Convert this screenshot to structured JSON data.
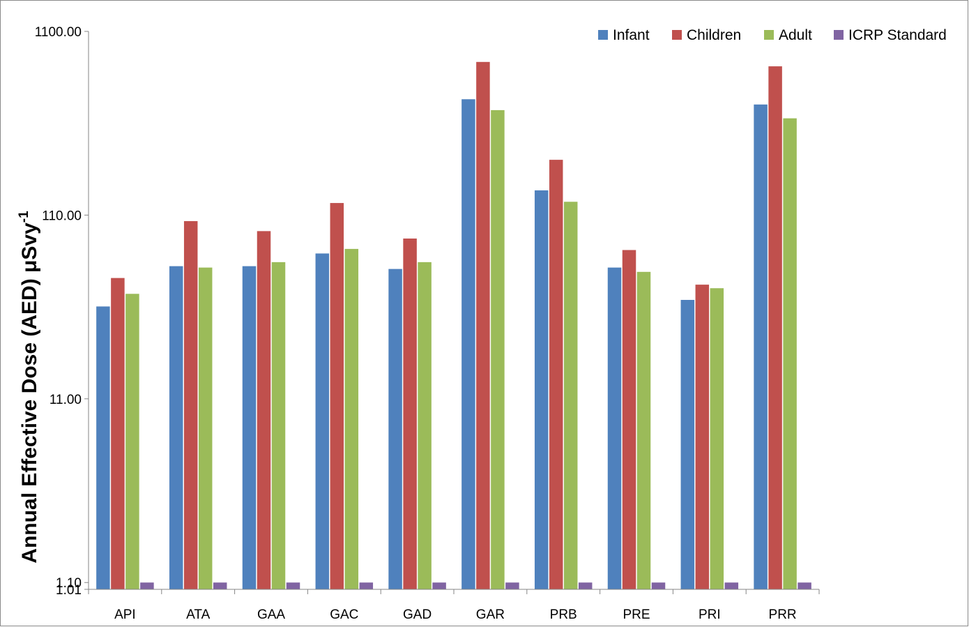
{
  "chart_data": {
    "type": "bar",
    "title": "",
    "xlabel": "",
    "ylabel": "Annual Effective Dose (AED) μSvy",
    "ylabel_superscript": "-1",
    "yscale": "log10",
    "ylim": [
      1.01,
      1100
    ],
    "yticks": [
      1.01,
      1.1,
      11,
      110,
      1100
    ],
    "ytick_labels": [
      "1.01",
      "1.10",
      "11.00",
      "110.00",
      "1100.00"
    ],
    "grid": false,
    "legend_position": "top-right",
    "categories": [
      "API",
      "ATA",
      "GAA",
      "GAC",
      "GAD",
      "GAR",
      "PRB",
      "PRE",
      "PRI",
      "PRR"
    ],
    "series": [
      {
        "name": "Infant",
        "color": "#4F81BD",
        "values": [
          35.0,
          58.0,
          58.0,
          68.0,
          56.0,
          470.0,
          150.0,
          57.0,
          38.0,
          440.0
        ]
      },
      {
        "name": "Children",
        "color": "#C0504D",
        "values": [
          50.0,
          102.0,
          90.0,
          128.0,
          82.0,
          750.0,
          220.0,
          71.0,
          46.0,
          710.0
        ]
      },
      {
        "name": "Adult",
        "color": "#9BBB59",
        "values": [
          41.0,
          57.0,
          61.0,
          72.0,
          61.0,
          410.0,
          130.0,
          54.0,
          44.0,
          370.0
        ]
      },
      {
        "name": "ICRP Standard",
        "color": "#8064A2",
        "values": [
          1.1,
          1.1,
          1.1,
          1.1,
          1.1,
          1.1,
          1.1,
          1.1,
          1.1,
          1.1
        ]
      }
    ]
  }
}
